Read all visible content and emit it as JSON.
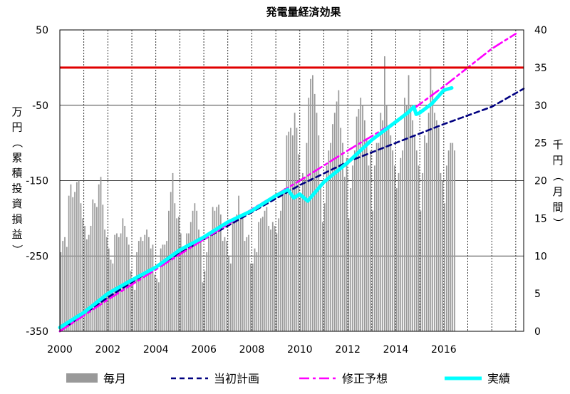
{
  "chart_data": {
    "type": "bar+line",
    "title": "発電量経済効果",
    "ylabel_left": "万円（累積投資損益）",
    "ylabel_right": "千円（月間）",
    "ylim_left": [
      -350,
      50
    ],
    "ylim_right": [
      0,
      40
    ],
    "xlim": [
      2000,
      2019.33
    ],
    "x_ticks": [
      2000,
      2002,
      2004,
      2006,
      2008,
      2010,
      2012,
      2014,
      2016
    ],
    "y_ticks_left": [
      50,
      -50,
      -150,
      -250,
      -350
    ],
    "y_ticks_right": [
      40,
      35,
      30,
      25,
      20,
      15,
      10,
      5,
      0
    ],
    "grid": true,
    "legend_position": "bottom",
    "reference_line": {
      "axis": "left",
      "value": 0,
      "color": "#e00000"
    },
    "colors": {
      "bars": "#999999",
      "plan": "#000080",
      "revised": "#ff00ff",
      "actual": "#00ffff",
      "zero": "#e00000",
      "grid": "#000000"
    },
    "series": [
      {
        "name": "毎月",
        "kind": "bar",
        "axis": "right",
        "x_start": 2000.0,
        "x_step": 0.0833,
        "values": [
          10.5,
          12.0,
          12.5,
          11.2,
          18.0,
          19.5,
          17.8,
          18.5,
          19.8,
          20.0,
          17.0,
          15.0,
          14.0,
          12.2,
          12.8,
          14.0,
          17.5,
          17.0,
          16.5,
          19.5,
          20.5,
          16.8,
          13.5,
          12.5,
          11.0,
          9.5,
          9.0,
          12.8,
          13.0,
          12.5,
          13.0,
          15.0,
          14.0,
          12.5,
          11.5,
          8.0,
          6.5,
          5.5,
          10.5,
          12.0,
          12.5,
          12.0,
          12.8,
          13.5,
          12.5,
          11.0,
          11.5,
          7.5,
          7.0,
          6.5,
          11.0,
          11.5,
          11.5,
          12.0,
          16.0,
          18.5,
          21.0,
          17.0,
          15.0,
          15.2,
          13.0,
          11.0,
          11.0,
          13.0,
          13.0,
          14.5,
          16.0,
          17.0,
          16.0,
          13.5,
          12.5,
          6.5,
          8.0,
          10.5,
          12.5,
          13.0,
          16.5,
          16.0,
          16.5,
          16.8,
          15.5,
          12.0,
          12.5,
          12.0,
          10.0,
          9.0,
          14.5,
          15.0,
          15.5,
          18.0,
          15.0,
          15.2,
          12.0,
          12.5,
          12.8,
          9.0,
          9.0,
          11.0,
          10.5,
          14.5,
          15.0,
          15.2,
          16.0,
          16.5,
          14.0,
          13.5,
          14.5,
          14.0,
          13.0,
          15.0,
          16.0,
          18.0,
          19.0,
          26.0,
          26.5,
          27.0,
          26.0,
          29.0,
          27.0,
          23.5,
          18.0,
          21.0,
          20.5,
          25.0,
          31.0,
          33.5,
          34.0,
          31.5,
          29.0,
          26.0,
          19.0,
          14.5,
          17.0,
          22.0,
          24.0,
          25.0,
          27.5,
          29.0,
          30.5,
          32.0,
          27.0,
          25.0,
          20.5,
          23.0,
          15.0,
          19.0,
          22.0,
          24.0,
          28.5,
          29.5,
          31.0,
          30.0,
          28.0,
          25.5,
          22.0,
          24.0,
          16.0,
          22.0,
          25.0,
          25.0,
          29.0,
          28.0,
          36.5,
          30.0,
          27.0,
          26.0,
          24.0,
          22.0,
          19.0,
          21.0,
          23.0,
          24.0,
          31.0,
          30.0,
          34.0,
          30.0,
          28.0,
          26.0,
          24.0,
          22.0,
          16.0,
          21.0,
          26.0,
          25.0,
          29.0,
          35.0,
          32.0,
          29.0,
          28.0,
          27.0,
          21.0,
          20.0,
          17.0,
          22.0,
          24.0,
          25.0,
          25.0,
          24.0
        ]
      },
      {
        "name": "当初計画",
        "kind": "line",
        "axis": "left",
        "style": "dashed",
        "x": [
          2000.0,
          2002.0,
          2004.0,
          2006.0,
          2008.0,
          2010.0,
          2012.0,
          2014.0,
          2016.0,
          2018.0,
          2019.33
        ],
        "y": [
          -350,
          -305,
          -265,
          -228,
          -192,
          -156,
          -125,
          -100,
          -75,
          -52,
          -28
        ]
      },
      {
        "name": "修正予想",
        "kind": "line",
        "axis": "left",
        "style": "dash-dot",
        "x": [
          2000.0,
          2002.0,
          2004.0,
          2006.0,
          2008.0,
          2010.0,
          2012.0,
          2014.0,
          2016.0,
          2017.0,
          2018.0,
          2019.0
        ],
        "y": [
          -350,
          -308,
          -268,
          -228,
          -188,
          -150,
          -110,
          -72,
          -25,
          0,
          25,
          45
        ]
      },
      {
        "name": "実績",
        "kind": "line",
        "axis": "left",
        "style": "solid",
        "x": [
          2000.0,
          2001.0,
          2002.0,
          2003.0,
          2004.0,
          2005.0,
          2006.0,
          2007.0,
          2008.0,
          2009.0,
          2009.5,
          2009.75,
          2010.0,
          2010.33,
          2011.0,
          2012.0,
          2013.0,
          2014.0,
          2014.5,
          2014.75,
          2014.85,
          2015.0,
          2015.5,
          2016.0,
          2016.33
        ],
        "y": [
          -345,
          -325,
          -300,
          -282,
          -265,
          -242,
          -225,
          -205,
          -190,
          -170,
          -162,
          -173,
          -168,
          -177,
          -152,
          -126,
          -96,
          -72,
          -60,
          -52,
          -62,
          -60,
          -48,
          -30,
          -27
        ]
      }
    ]
  }
}
